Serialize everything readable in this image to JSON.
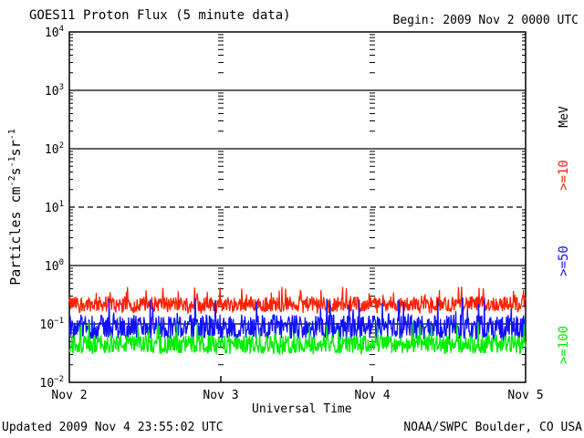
{
  "page": {
    "title": "GOES11 Proton Flux (5 minute data)",
    "begin": "Begin: 2009 Nov 2 0000 UTC",
    "updated": "Updated 2009 Nov  4 23:55:02 UTC",
    "credit": "NOAA/SWPC Boulder, CO USA"
  },
  "chart_data": {
    "type": "line",
    "title": "GOES11 Proton Flux (5 minute data)",
    "xlabel": "Universal Time",
    "ylabel": "Particles cm⁻²s⁻¹sr⁻¹",
    "y_scale": "log",
    "ylim": [
      0.01,
      10000
    ],
    "x_ticks": [
      "Nov 2",
      "Nov 3",
      "Nov 4",
      "Nov 5"
    ],
    "y_ticks": [
      "10⁻²",
      "10⁻¹",
      "10⁰",
      "10¹",
      "10²",
      "10³",
      "10⁴"
    ],
    "units_label": "MeV",
    "grid": "horizontal lines at each decade; dashed at 10^1",
    "series": [
      {
        "name": ">=10",
        "color": "#ff2000",
        "approx_mean": 0.22,
        "approx_min": 0.15,
        "approx_max": 0.45
      },
      {
        "name": ">=50",
        "color": "#1010ff",
        "approx_mean": 0.09,
        "approx_min": 0.05,
        "approx_max": 0.28
      },
      {
        "name": ">=100",
        "color": "#00ee00",
        "approx_mean": 0.045,
        "approx_min": 0.03,
        "approx_max": 0.11
      }
    ]
  }
}
